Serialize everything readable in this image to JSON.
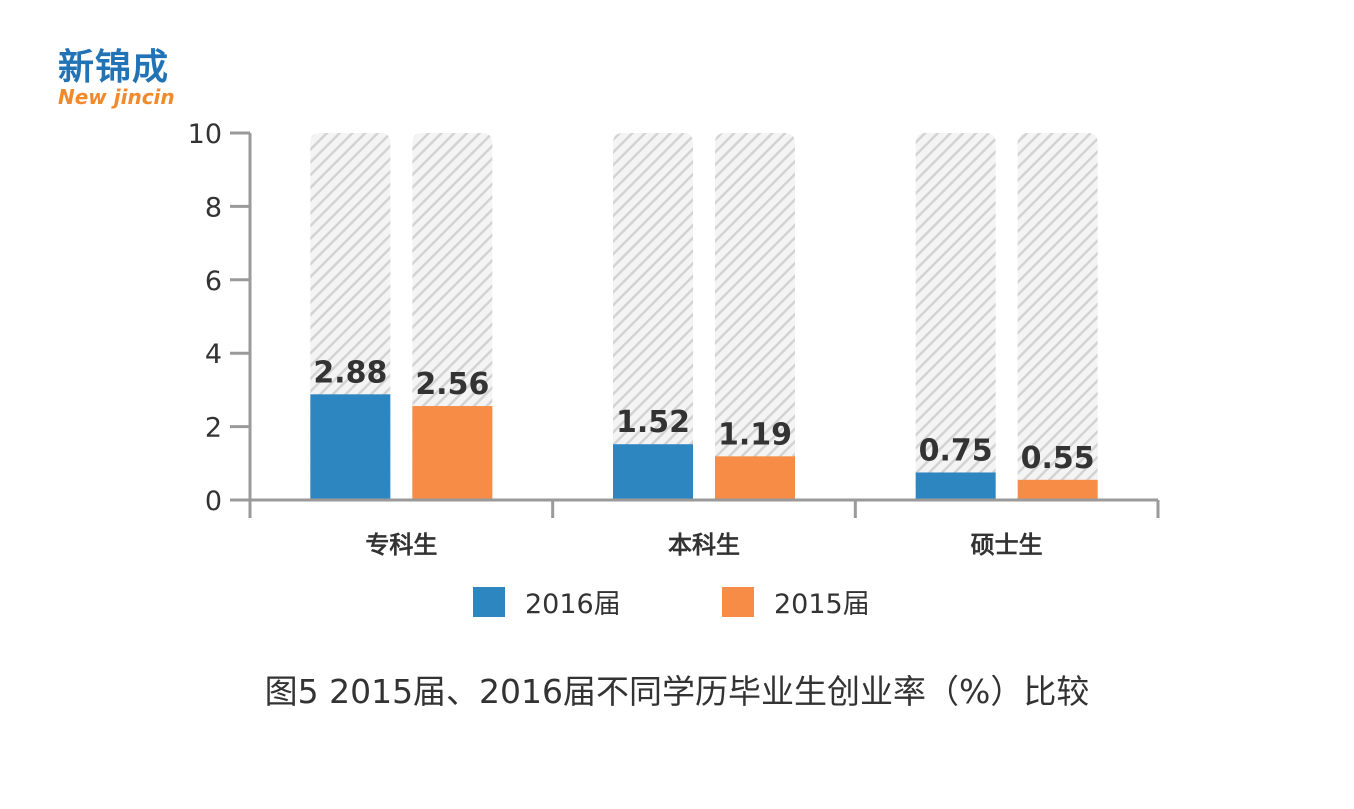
{
  "logo": {
    "cn": "新锦成",
    "en": "New jincin"
  },
  "caption": "图5  2015届、2016届不同学历毕业生创业率（%）比较",
  "colors": {
    "s2016": "#2e86c1",
    "s2015": "#f68c45",
    "bg": "#d9d9d9",
    "axis": "#9a9a9a",
    "text": "#333333"
  },
  "chart_data": {
    "type": "bar",
    "title": "",
    "xlabel": "",
    "ylabel": "",
    "categories": [
      "专科生",
      "本科生",
      "硕士生"
    ],
    "series": [
      {
        "name": "2016届",
        "values": [
          2.88,
          1.52,
          0.75
        ]
      },
      {
        "name": "2015届",
        "values": [
          2.56,
          1.19,
          0.55
        ]
      }
    ],
    "value_labels": [
      [
        "2.88",
        "1.52",
        "0.75"
      ],
      [
        "2.56",
        "1.19",
        "0.55"
      ]
    ],
    "ylim": [
      0,
      10
    ],
    "yticks": [
      0,
      2,
      4,
      6,
      8,
      10
    ],
    "ytick_labels": [
      "0",
      "2",
      "4",
      "6",
      "8",
      "10"
    ],
    "background_bars": true,
    "grid": false,
    "legend_position": "bottom"
  }
}
